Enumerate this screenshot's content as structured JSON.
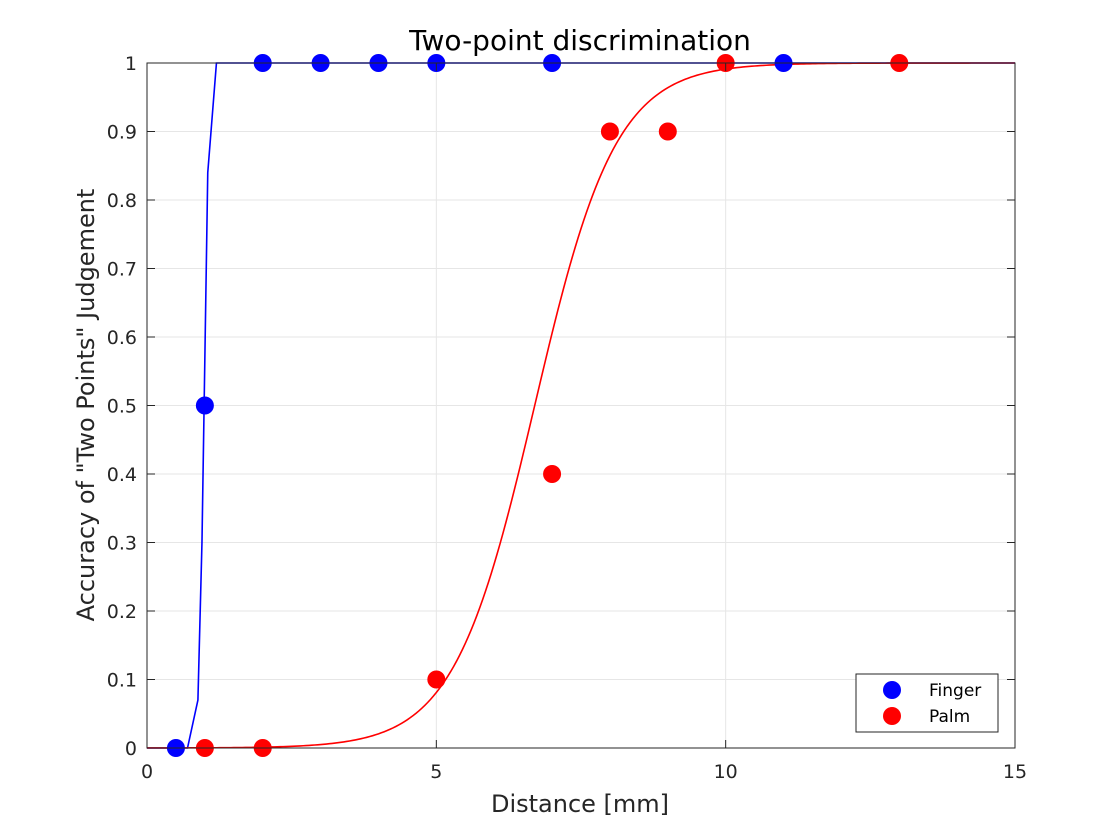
{
  "chart_data": {
    "type": "scatter",
    "title": "Two-point discrimination",
    "xlabel": "Distance [mm]",
    "ylabel": "Accuracy of \"Two Points\" Judgement",
    "xlim": [
      0,
      15
    ],
    "ylim": [
      0,
      1
    ],
    "xticks": [
      0,
      5,
      10,
      15
    ],
    "yticks": [
      0,
      0.1,
      0.2,
      0.3,
      0.4,
      0.5,
      0.6,
      0.7,
      0.8,
      0.9,
      1
    ],
    "xtick_labels": [
      "0",
      "5",
      "10",
      "15"
    ],
    "ytick_labels": [
      "0",
      "0.1",
      "0.2",
      "0.3",
      "0.4",
      "0.5",
      "0.6",
      "0.7",
      "0.8",
      "0.9",
      "1"
    ],
    "grid": true,
    "legend_position": "bottom-right",
    "series": [
      {
        "name": "Finger",
        "color": "#0000ff",
        "x": [
          0.5,
          1,
          2,
          3,
          4,
          5,
          7,
          11
        ],
        "y": [
          0,
          0.5,
          1,
          1,
          1,
          1,
          1,
          1
        ],
        "fit_curve": {
          "x": [
            0,
            0.7,
            0.88,
            0.95,
            1.05,
            1.2,
            15
          ],
          "y": [
            0,
            0,
            0.07,
            0.3,
            0.84,
            1,
            1
          ]
        }
      },
      {
        "name": "Palm",
        "color": "#ff0000",
        "x": [
          1,
          2,
          5,
          7,
          8,
          9,
          10,
          13
        ],
        "y": [
          0,
          0,
          0.1,
          0.4,
          0.9,
          0.9,
          1,
          1
        ],
        "fit_curve": {
          "model": "logistic",
          "midpoint": 6.7,
          "scale": 0.7,
          "x_range": [
            0,
            15
          ]
        }
      }
    ]
  }
}
